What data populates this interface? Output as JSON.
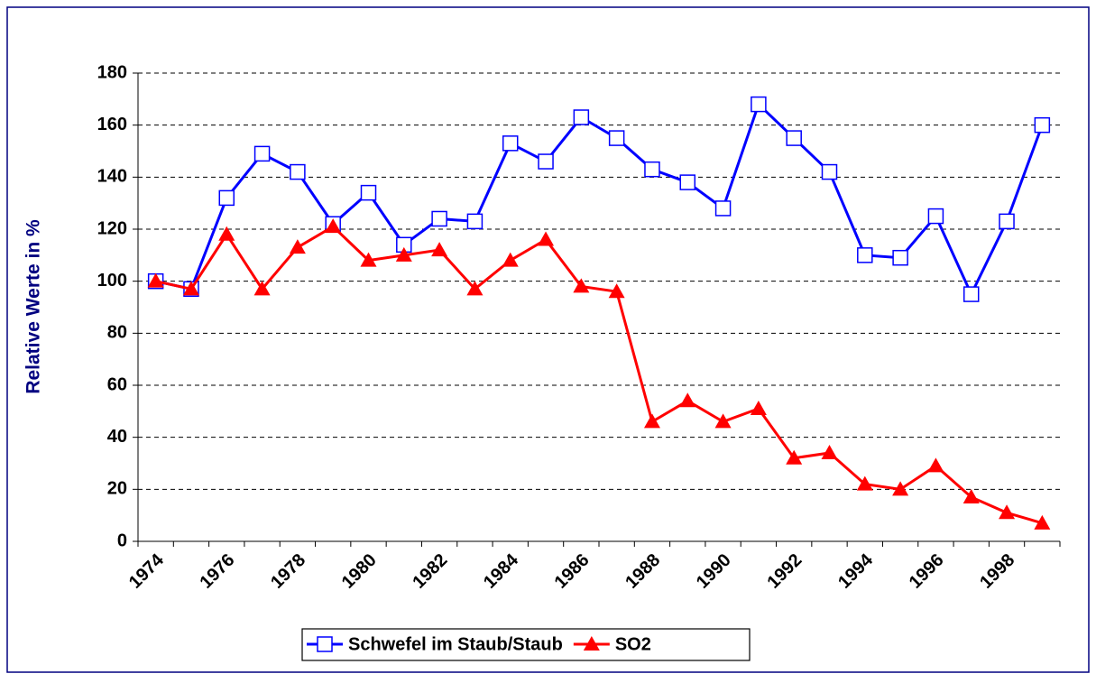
{
  "chart_data": {
    "type": "line",
    "y_label": "Relative Werte in %",
    "categories": [
      "1974",
      null,
      "1976",
      null,
      "1978",
      null,
      "1980",
      null,
      "1982",
      null,
      "1984",
      null,
      "1986",
      null,
      "1988",
      null,
      "1990",
      null,
      "1992",
      null,
      "1994",
      null,
      "1996",
      null,
      "1998",
      null
    ],
    "series": [
      {
        "name": "Schwefel im Staub/Staub",
        "color": "#0000ff",
        "marker": "square",
        "values": [
          100,
          97,
          132,
          149,
          142,
          122,
          134,
          114,
          124,
          123,
          153,
          146,
          163,
          155,
          143,
          138,
          128,
          168,
          155,
          142,
          110,
          109,
          125,
          95,
          123,
          160
        ]
      },
      {
        "name": "SO2",
        "color": "#ff0000",
        "marker": "triangle",
        "values": [
          100,
          97,
          118,
          97,
          113,
          121,
          108,
          110,
          112,
          97,
          108,
          116,
          98,
          96,
          46,
          54,
          46,
          51,
          32,
          34,
          22,
          20,
          29,
          17,
          11,
          7
        ]
      }
    ],
    "ylim": [
      0,
      180
    ],
    "yticks": [
      0,
      20,
      40,
      60,
      80,
      100,
      120,
      140,
      160,
      180
    ],
    "grid": true,
    "legend": "bottom"
  }
}
